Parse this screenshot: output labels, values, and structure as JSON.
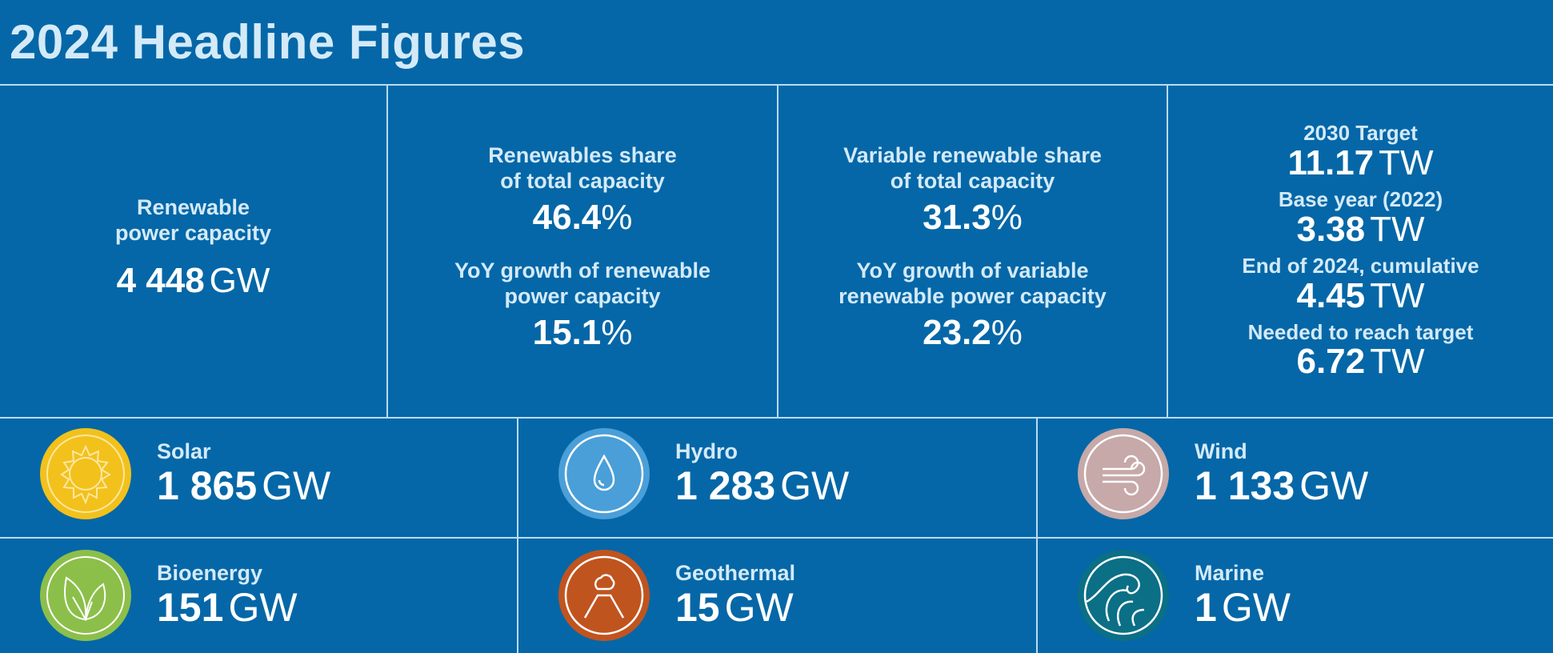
{
  "title": "2024 Headline Figures",
  "capacity": {
    "label1": "Renewable",
    "label2": "power capacity",
    "value": "4 448",
    "unit": "GW"
  },
  "share": {
    "label1": "Renewables share",
    "label2": "of total capacity",
    "value": "46.4",
    "unit": "%",
    "g_label1": "YoY growth of renewable",
    "g_label2": "power capacity",
    "g_value": "15.1",
    "g_unit": "%"
  },
  "var_share": {
    "label1": "Variable renewable share",
    "label2": "of total capacity",
    "value": "31.3",
    "unit": "%",
    "g_label1": "YoY growth of variable",
    "g_label2": "renewable power capacity",
    "g_value": "23.2",
    "g_unit": "%"
  },
  "target": [
    {
      "label": "2030 Target",
      "value": "11.17",
      "unit": "TW"
    },
    {
      "label": "Base year (2022)",
      "value": "3.38",
      "unit": "TW"
    },
    {
      "label": "End of 2024, cumulative",
      "value": "4.45",
      "unit": "TW"
    },
    {
      "label": "Needed to reach target",
      "value": "6.72",
      "unit": "TW"
    }
  ],
  "sources": [
    {
      "name": "Solar",
      "value": "1 865",
      "unit": "GW",
      "icon": "sun-icon",
      "color": "#f2c11c"
    },
    {
      "name": "Hydro",
      "value": "1 283",
      "unit": "GW",
      "icon": "water-drop-icon",
      "color": "#4a9fd8"
    },
    {
      "name": "Wind",
      "value": "1 133",
      "unit": "GW",
      "icon": "wind-icon",
      "color": "#c6a9a8"
    },
    {
      "name": "Bioenergy",
      "value": "151",
      "unit": "GW",
      "icon": "leaf-icon",
      "color": "#8cbf4a"
    },
    {
      "name": "Geothermal",
      "value": "15",
      "unit": "GW",
      "icon": "volcano-icon",
      "color": "#c0541f"
    },
    {
      "name": "Marine",
      "value": "1",
      "unit": "GW",
      "icon": "wave-icon",
      "color": "#0b6f86"
    }
  ]
}
